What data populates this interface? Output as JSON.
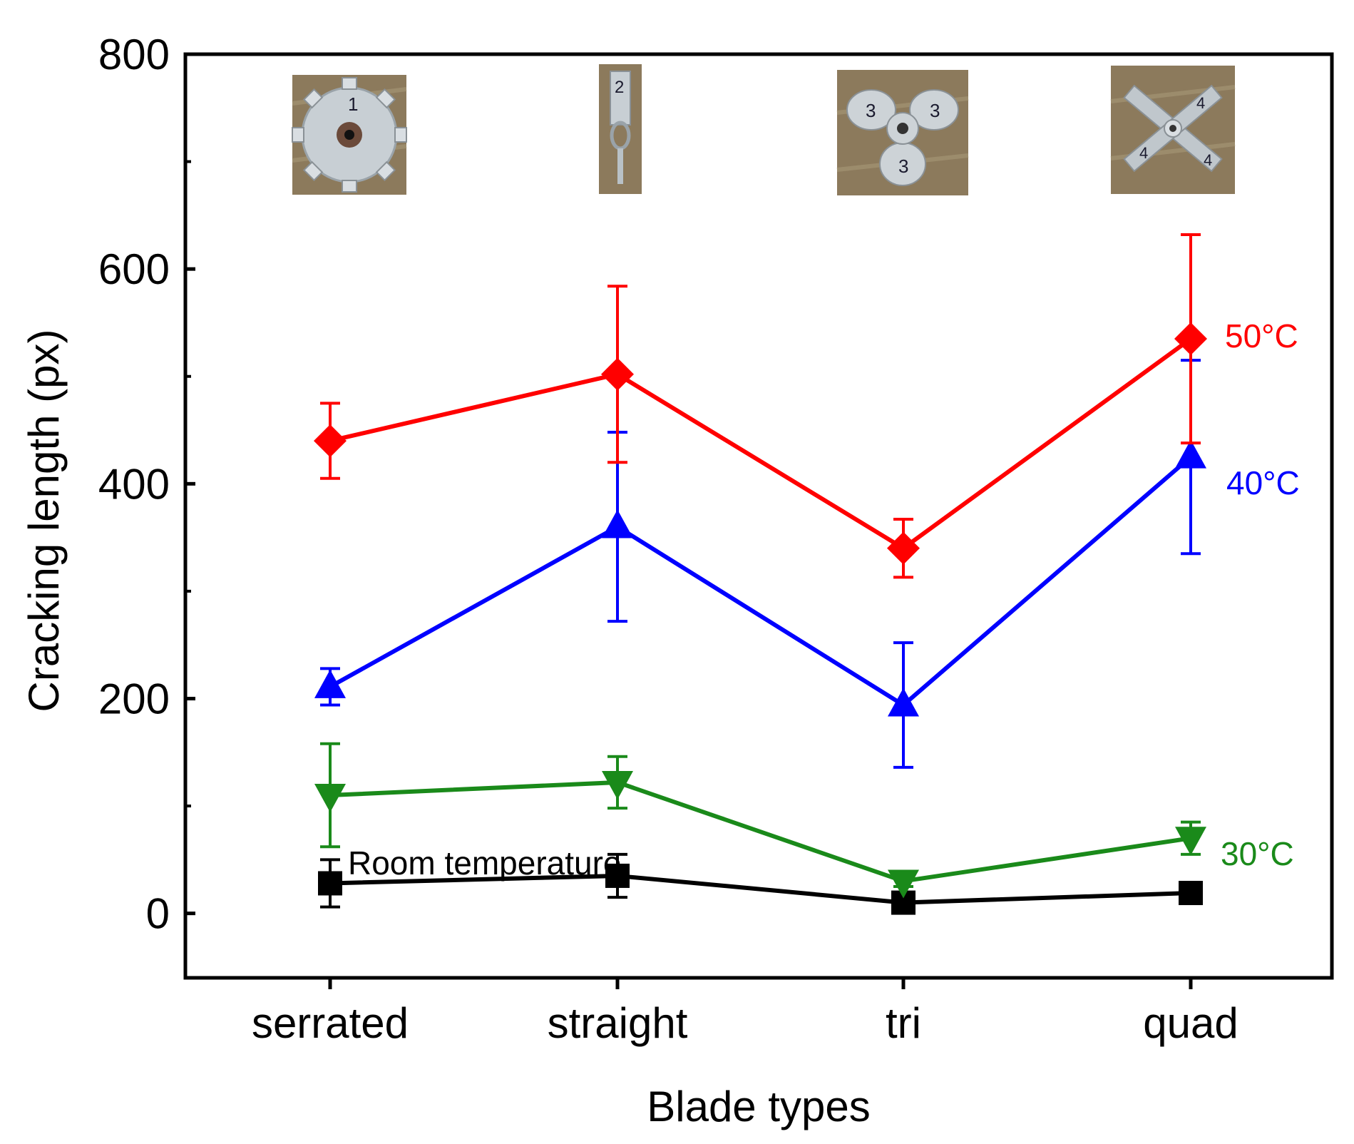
{
  "chart_data": {
    "type": "line",
    "xlabel": "Blade types",
    "ylabel": "Cracking length (px)",
    "ylim": [
      -60,
      800
    ],
    "yticks": [
      0,
      200,
      400,
      600,
      800
    ],
    "categories": [
      "serrated",
      "straight",
      "tri",
      "quad"
    ],
    "series": [
      {
        "name": "Room temperature",
        "color": "#000000",
        "marker": "square",
        "values": [
          28,
          35,
          10,
          19
        ],
        "errors": [
          22,
          20,
          6,
          6
        ]
      },
      {
        "name": "30°C",
        "color": "#1a8a1a",
        "marker": "triangle-down",
        "values": [
          110,
          122,
          30,
          70
        ],
        "errors": [
          48,
          24,
          5,
          15
        ]
      },
      {
        "name": "40°C",
        "color": "#0000ff",
        "marker": "triangle-up",
        "values": [
          211,
          360,
          194,
          425
        ],
        "errors": [
          17,
          88,
          58,
          90
        ]
      },
      {
        "name": "50°C",
        "color": "#ff0000",
        "marker": "diamond",
        "values": [
          440,
          502,
          340,
          535
        ],
        "errors": [
          35,
          82,
          27,
          97
        ]
      }
    ],
    "inset_images": [
      {
        "category": "serrated",
        "icon": "serrated-blade-photo",
        "label": "1"
      },
      {
        "category": "straight",
        "icon": "straight-blade-photo",
        "label": "2"
      },
      {
        "category": "tri",
        "icon": "tri-blade-photo",
        "label": "3"
      },
      {
        "category": "quad",
        "icon": "quad-blade-photo",
        "label": "4"
      }
    ]
  }
}
